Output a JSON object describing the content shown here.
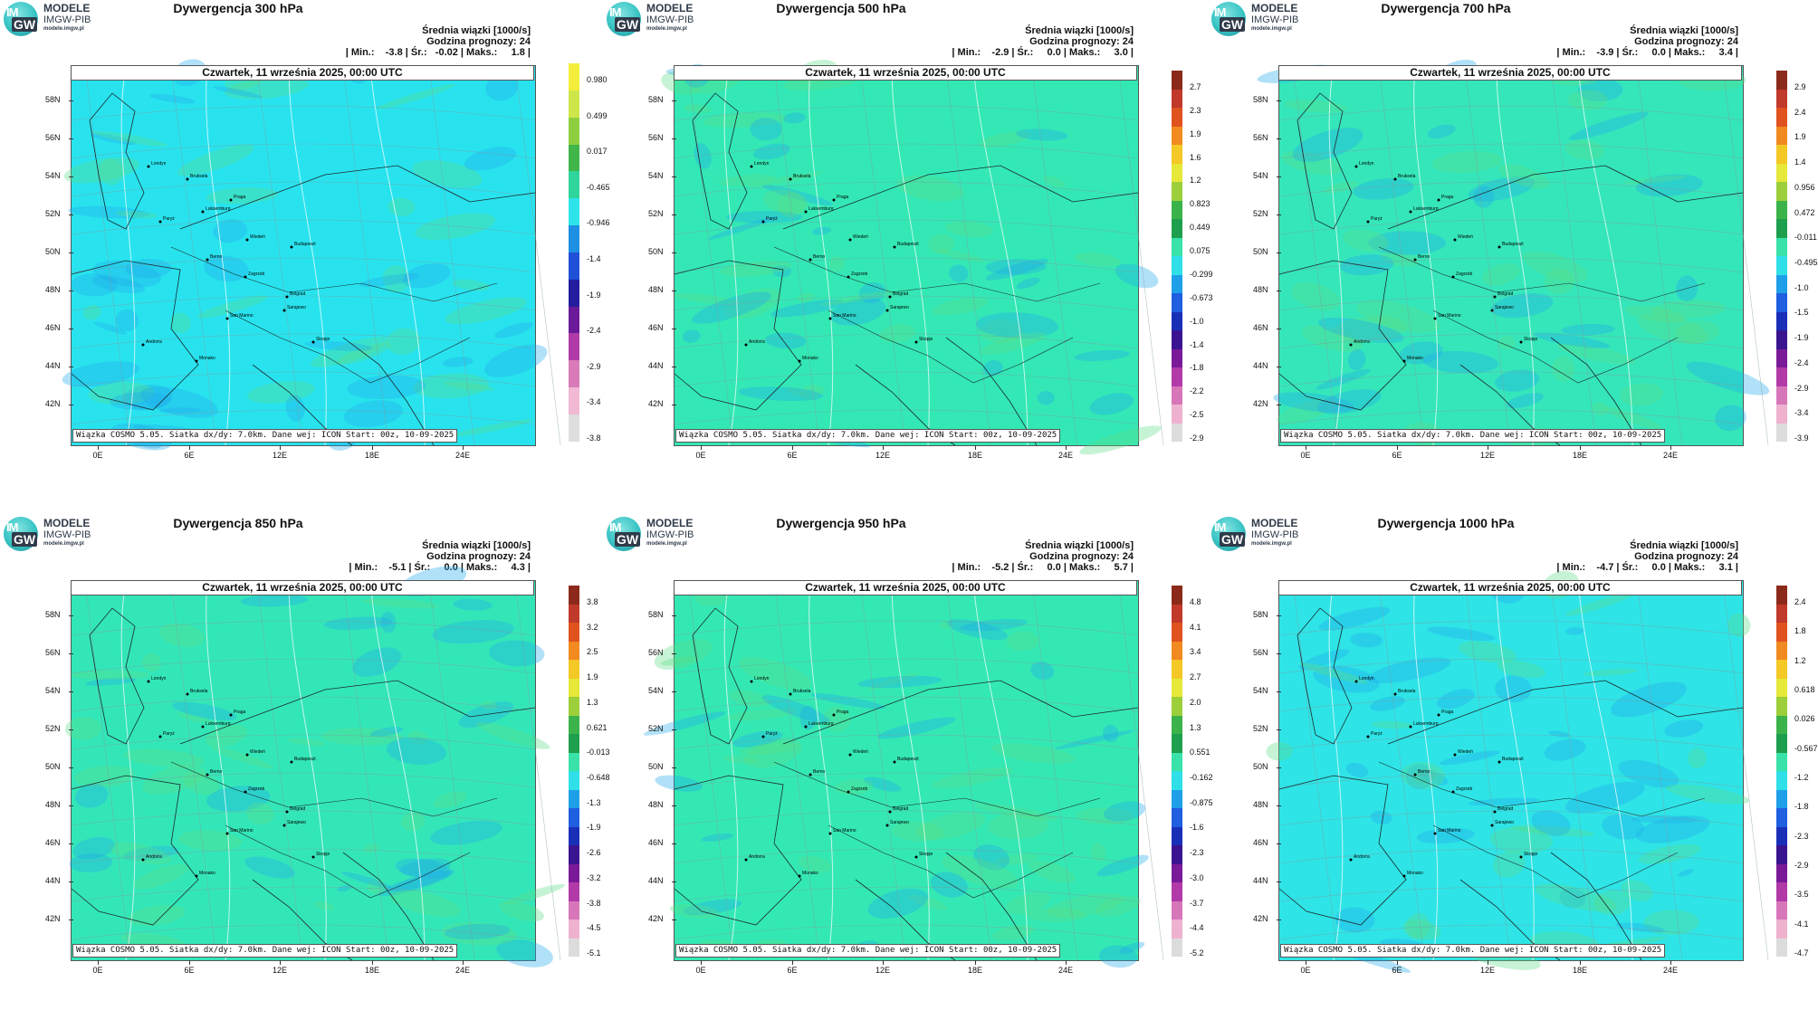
{
  "logo": {
    "t_im": "IM",
    "t_gw": "GW",
    "line1": "MODELE",
    "line2": "IMGW-PIB",
    "line3": "modele.imgw.pl"
  },
  "common": {
    "date": "Czwartek, 11 września 2025, 00:00 UTC",
    "stats_title": "Średnia wiązki [1000/s]",
    "forecast_hour": "Godzina prognozy: 24",
    "footer": "Wiązka COSMO 5.05. Siatka dx/dy: 7.0km. Dane wej: ICON Start: 00z, 10-09-2025",
    "lat_labels": [
      "58N",
      "56N",
      "54N",
      "52N",
      "50N",
      "48N",
      "46N",
      "44N",
      "42N"
    ],
    "lon_labels": [
      "0E",
      "6E",
      "12E",
      "18E",
      "24E"
    ],
    "cities": [
      "Londyn",
      "Bruksela",
      "Luksemburg",
      "Paryż",
      "Praga",
      "Berno",
      "Wiedeń",
      "Budapeszt",
      "Zagrzeb",
      "Belgrad",
      "San Marino",
      "Sarajewo",
      "Skopje",
      "Andorra",
      "Monako"
    ]
  },
  "panels": [
    {
      "title": "Dywergencja 300 hPa",
      "stats": "| Min.:    -3.8 | Śr.:   -0.02 | Maks.:     1.8 |",
      "ticks": [
        "0.980",
        "0.499",
        "0.017",
        "-0.465",
        "-0.946",
        "-1.4",
        "-1.9",
        "-2.4",
        "-2.9",
        "-3.4",
        "-3.8"
      ],
      "base": "#28e3ee"
    },
    {
      "title": "Dywergencja 500 hPa",
      "stats": "| Min.:    -2.9 | Śr.:     0.0 | Maks.:     3.0 |",
      "ticks": [
        "2.7",
        "2.3",
        "1.9",
        "1.6",
        "1.2",
        "0.823",
        "0.449",
        "0.075",
        "-0.299",
        "-0.673",
        "-1.0",
        "-1.4",
        "-1.8",
        "-2.2",
        "-2.5",
        "-2.9"
      ],
      "base": "#33e8b5"
    },
    {
      "title": "Dywergencja 700 hPa",
      "stats": "| Min.:    -3.9 | Śr.:     0.0 | Maks.:     3.4 |",
      "ticks": [
        "2.9",
        "2.4",
        "1.9",
        "1.4",
        "0.956",
        "0.472",
        "-0.011",
        "-0.495",
        "-1.0",
        "-1.5",
        "-1.9",
        "-2.4",
        "-2.9",
        "-3.4",
        "-3.9"
      ],
      "base": "#35e6ba"
    },
    {
      "title": "Dywergencja 850 hPa",
      "stats": "| Min.:    -5.1 | Śr.:     0.0 | Maks.:     4.3 |",
      "ticks": [
        "3.8",
        "3.2",
        "2.5",
        "1.9",
        "1.3",
        "0.621",
        "-0.013",
        "-0.648",
        "-1.3",
        "-1.9",
        "-2.6",
        "-3.2",
        "-3.8",
        "-4.5",
        "-5.1"
      ],
      "base": "#33e6b8"
    },
    {
      "title": "Dywergencja 950 hPa",
      "stats": "| Min.:    -5.2 | Śr.:     0.0 | Maks.:     5.7 |",
      "ticks": [
        "4.8",
        "4.1",
        "3.4",
        "2.7",
        "2.0",
        "1.3",
        "0.551",
        "-0.162",
        "-0.875",
        "-1.6",
        "-2.3",
        "-3.0",
        "-3.7",
        "-4.4",
        "-5.2"
      ],
      "base": "#34e8b4"
    },
    {
      "title": "Dywergencja 1000 hPa",
      "stats": "| Min.:    -4.7 | Śr.:     0.0 | Maks.:     3.1 |",
      "ticks": [
        "2.4",
        "1.8",
        "1.2",
        "0.618",
        "0.026",
        "-0.567",
        "-1.2",
        "-1.8",
        "-2.3",
        "-2.9",
        "-3.5",
        "-4.1",
        "-4.7"
      ],
      "base": "#2ee4e6"
    }
  ],
  "colorbar": [
    "#8b2a1a",
    "#c0392b",
    "#e0531f",
    "#f18a21",
    "#f4c825",
    "#e6e83a",
    "#9ccf3a",
    "#3bb34a",
    "#1e9f4e",
    "#38e2a8",
    "#2fe0e8",
    "#1f9fe8",
    "#1f5fe0",
    "#1a2fb8",
    "#3a1490",
    "#7a1a98",
    "#b13aa8",
    "#d776b9",
    "#eeb2d0",
    "#dcdcdc"
  ],
  "colorbar_300": [
    "#f3ee3b",
    "#cfe64a",
    "#8dcf3f",
    "#3fb54a",
    "#2fd59a",
    "#2fe3ea",
    "#1e8fe3",
    "#1f50d8",
    "#231c9e",
    "#6a1a98",
    "#b03aa8",
    "#d97ab9",
    "#f1b9d4",
    "#dedede"
  ]
}
